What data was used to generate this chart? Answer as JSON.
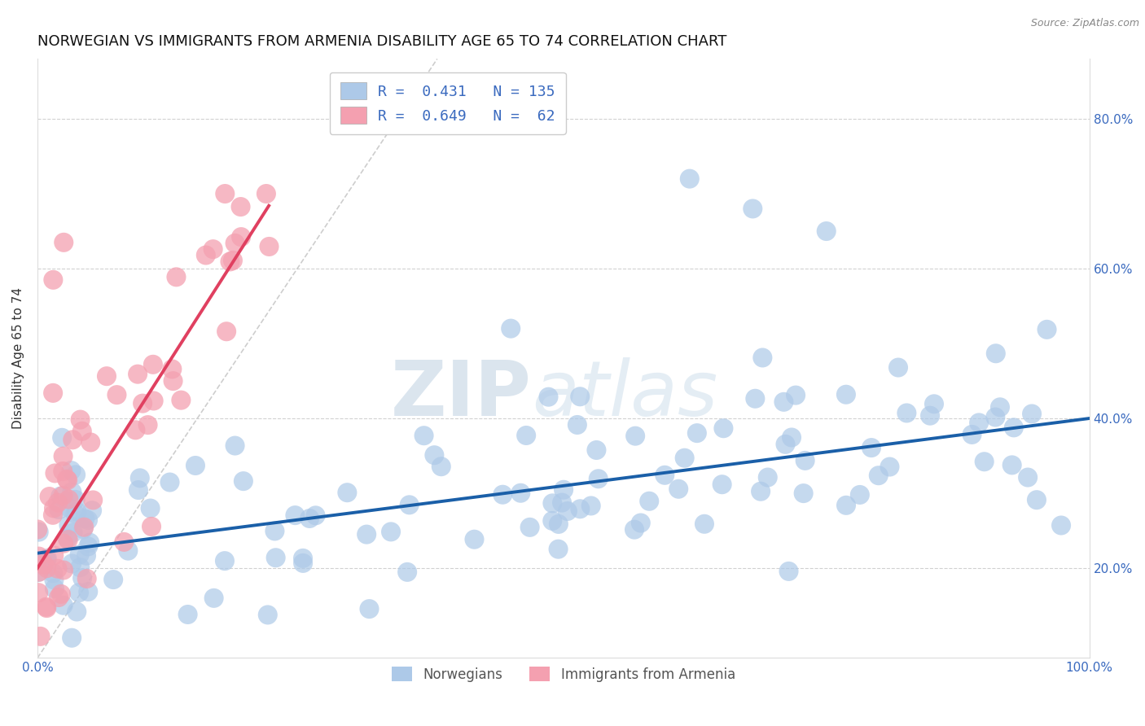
{
  "title": "NORWEGIAN VS IMMIGRANTS FROM ARMENIA DISABILITY AGE 65 TO 74 CORRELATION CHART",
  "source": "Source: ZipAtlas.com",
  "ylabel": "Disability Age 65 to 74",
  "xlim": [
    0.0,
    1.0
  ],
  "ylim": [
    0.08,
    0.88
  ],
  "yticks": [
    0.2,
    0.4,
    0.6,
    0.8
  ],
  "ytick_labels": [
    "20.0%",
    "40.0%",
    "60.0%",
    "80.0%"
  ],
  "norwegians": {
    "R": 0.431,
    "N": 135,
    "color": "#adc9e8",
    "line_color": "#1a5fa8",
    "label": "Norwegians"
  },
  "armenians": {
    "R": 0.649,
    "N": 62,
    "color": "#f4a0b0",
    "line_color": "#e04060",
    "label": "Immigrants from Armenia"
  },
  "watermark_zip": "ZIP",
  "watermark_atlas": "atlas",
  "background_color": "#ffffff",
  "grid_color": "#cccccc",
  "title_fontsize": 13,
  "axis_label_fontsize": 11,
  "tick_fontsize": 11,
  "legend_fontsize": 13
}
